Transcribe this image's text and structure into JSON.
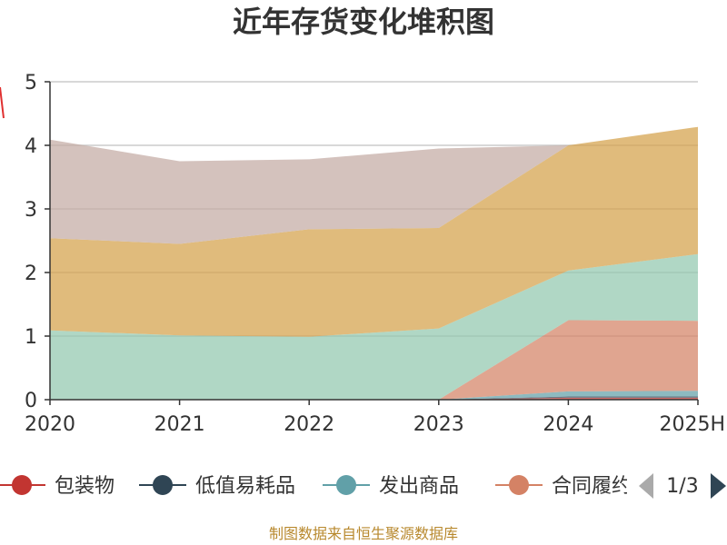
{
  "chart_data": {
    "type": "area",
    "title": "近年存货变化堆积图",
    "stacked": true,
    "categories": [
      "2020",
      "2021",
      "2022",
      "2023",
      "2024",
      "2025H"
    ],
    "ylim": [
      0,
      5
    ],
    "yticks": [
      0,
      1,
      2,
      3,
      4,
      5
    ],
    "grid": true,
    "series": [
      {
        "name": "包装物",
        "color": "#c23531",
        "values": [
          0,
          0,
          0,
          0,
          0.03,
          0.03
        ],
        "drawn": true
      },
      {
        "name": "低值易耗品",
        "color": "#2f4554",
        "values": [
          0,
          0,
          0,
          0,
          0.02,
          0.02
        ],
        "drawn": true
      },
      {
        "name": "发出商品",
        "color": "#61a0a8",
        "values": [
          0,
          0,
          0,
          0,
          0.08,
          0.09
        ],
        "drawn": true
      },
      {
        "name": "合同履约成本",
        "color": "#d48265",
        "values": [
          0,
          0,
          0,
          0,
          1.12,
          1.1
        ],
        "drawn": true
      },
      {
        "name": "",
        "color": "#91c7ae",
        "values": [
          1.09,
          1.01,
          0.99,
          1.12,
          0.78,
          1.05
        ],
        "drawn": true
      },
      {
        "name": "",
        "color": "#d4a14a",
        "values": [
          1.45,
          1.44,
          1.69,
          1.58,
          1.97,
          2.0
        ],
        "drawn": true
      },
      {
        "name": "",
        "color": "#c4aba3",
        "values": [
          1.55,
          1.3,
          1.1,
          1.25,
          0,
          0
        ],
        "drawn": true
      }
    ],
    "legend": {
      "position": "bottom",
      "page": "1/3",
      "visible_count": 4
    }
  },
  "source_note": "制图数据来自恒生聚源数据库"
}
